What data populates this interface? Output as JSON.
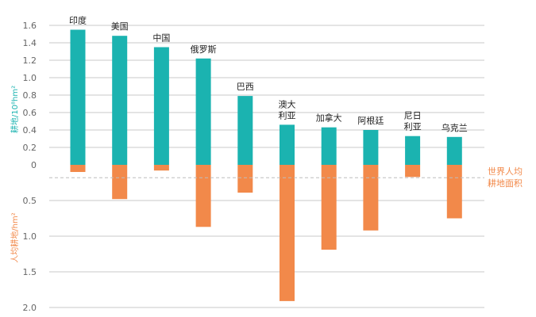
{
  "chart_data": {
    "type": "bar",
    "categories": [
      [
        "印度"
      ],
      [
        "美国"
      ],
      [
        "中国"
      ],
      [
        "俄罗斯"
      ],
      [
        "巴西"
      ],
      [
        "澳大",
        "利亚"
      ],
      [
        "加拿大"
      ],
      [
        "阿根廷"
      ],
      [
        "尼日",
        "利亚"
      ],
      [
        "乌克兰"
      ]
    ],
    "series": [
      {
        "values": [
          1.55,
          1.48,
          1.35,
          1.22,
          0.79,
          0.46,
          0.43,
          0.4,
          0.33,
          0.32
        ],
        "color": "#1bb3b0"
      },
      {
        "values": [
          0.1,
          0.48,
          0.08,
          0.87,
          0.39,
          1.91,
          1.19,
          0.92,
          0.17,
          0.75
        ],
        "color": "#f2894a"
      }
    ],
    "top_axis": {
      "label": "耕地/10⁸hm²",
      "ylim": [
        0,
        1.6
      ],
      "ticks": [
        "0",
        "0.2",
        "0.4",
        "0.6",
        "0.8",
        "1.0",
        "1.2",
        "1.4",
        "1.6"
      ]
    },
    "bottom_axis": {
      "label": "人均耕地/hm²",
      "ylim": [
        0,
        2.0
      ],
      "ticks": [
        "0.5",
        "1.0",
        "1.5",
        "2.0"
      ]
    },
    "world_average": {
      "value": 0.18,
      "label": [
        "世界人均",
        "耕地面积"
      ]
    },
    "grid": true
  }
}
